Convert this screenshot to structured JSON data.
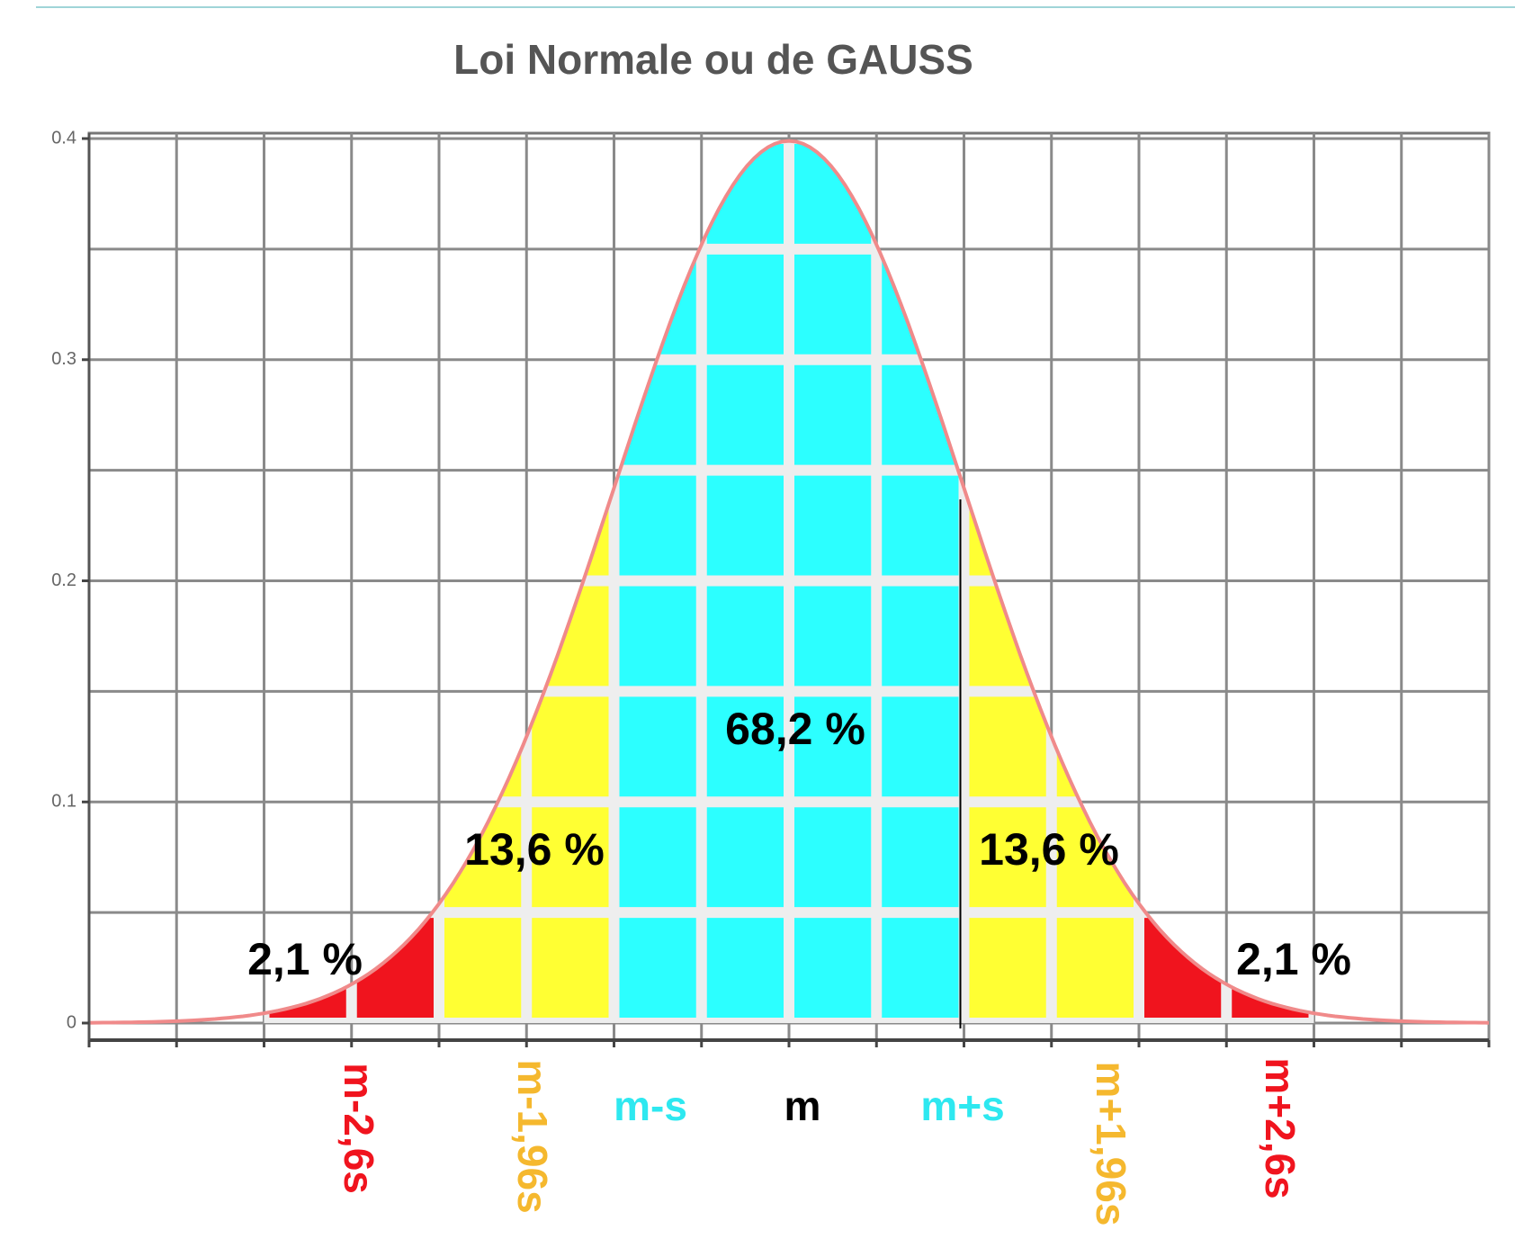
{
  "chart_data": {
    "type": "normal",
    "title": "Loi Normale ou de GAUSS",
    "distribution": {
      "mean": 0,
      "sd": 1
    },
    "curve_color": "#f08a8a",
    "xlim": [
      -4,
      4
    ],
    "xticks": [
      -4,
      -3.5,
      -3,
      -2.5,
      -2,
      -1.5,
      -1,
      -0.5,
      0,
      0.5,
      1,
      1.5,
      2,
      2.5,
      3,
      3.5,
      4
    ],
    "ylim": [
      0,
      0.4
    ],
    "yticks": [
      0,
      0.1,
      0.2,
      0.3,
      0.4
    ],
    "grid": true,
    "regions": [
      [
        -3,
        -2
      ],
      [
        -2,
        -1
      ],
      [
        -1,
        1
      ],
      [
        1,
        2
      ],
      [
        2,
        3
      ]
    ],
    "region_colors": [
      "#f0141e",
      "#ffff33",
      "#2cffff",
      "#ffff33",
      "#f0141e"
    ],
    "values": [
      2.1,
      13.6,
      68.2,
      13.6,
      2.1
    ],
    "value_labels": [
      "2,1 %",
      "13,6 %",
      "68,2 %",
      "13,6 %",
      "2,1 %"
    ],
    "annotations": [
      {
        "text": "m-2,6s",
        "color": "#f0141e"
      },
      {
        "text": "m-1,96s",
        "color": "#f5b82e"
      },
      {
        "text": "m-s",
        "color": "#2ee8f0"
      },
      {
        "text": "m",
        "color": "#000000"
      },
      {
        "text": "m+s",
        "color": "#2ee8f0"
      },
      {
        "text": "m+1,96s",
        "color": "#f5b82e"
      },
      {
        "text": "m+2,6s",
        "color": "#f0141e"
      }
    ]
  }
}
